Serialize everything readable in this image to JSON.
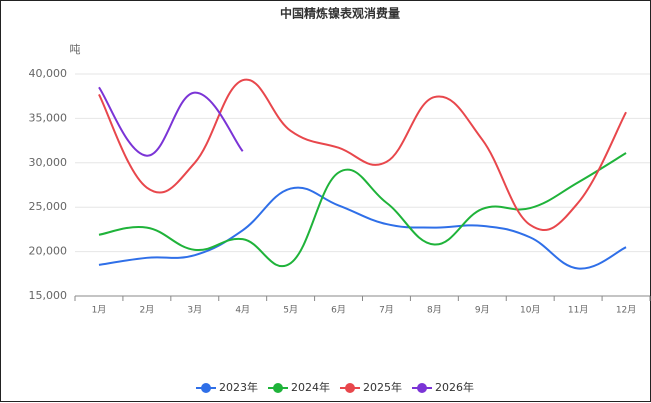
{
  "chart_data": {
    "type": "line",
    "title": "中国精炼镍表观消费量",
    "y_label": "吨",
    "categories": [
      "1月",
      "2月",
      "3月",
      "4月",
      "5月",
      "6月",
      "7月",
      "8月",
      "9月",
      "10月",
      "11月",
      "12月"
    ],
    "series": [
      {
        "name": "2023年",
        "color": "#2f6fe8",
        "values": [
          18500,
          19300,
          19600,
          22400,
          27100,
          25200,
          23100,
          22700,
          22900,
          21600,
          18100,
          20500
        ]
      },
      {
        "name": "2024年",
        "color": "#1fb33a",
        "values": [
          21900,
          22700,
          20200,
          21400,
          18700,
          28900,
          25500,
          20800,
          24800,
          24900,
          27800,
          31100
        ]
      },
      {
        "name": "2025年",
        "color": "#e8474c",
        "values": [
          37700,
          27200,
          30000,
          39300,
          33600,
          31700,
          30100,
          37400,
          32600,
          23000,
          25500,
          35700
        ]
      },
      {
        "name": "2026年",
        "color": "#7b34d6",
        "values": [
          38500,
          30800,
          37900,
          31300,
          null,
          null,
          null,
          null,
          null,
          null,
          null,
          null
        ]
      }
    ],
    "ylim": [
      15000,
      40000
    ],
    "yticks": [
      {
        "value": 15000,
        "label": "15,000"
      },
      {
        "value": 20000,
        "label": "20,000"
      },
      {
        "value": 25000,
        "label": "25,000"
      },
      {
        "value": 30000,
        "label": "30,000"
      },
      {
        "value": 35000,
        "label": "35,000"
      },
      {
        "value": 40000,
        "label": "40,000"
      }
    ],
    "grid": true,
    "legend": "bottom"
  }
}
